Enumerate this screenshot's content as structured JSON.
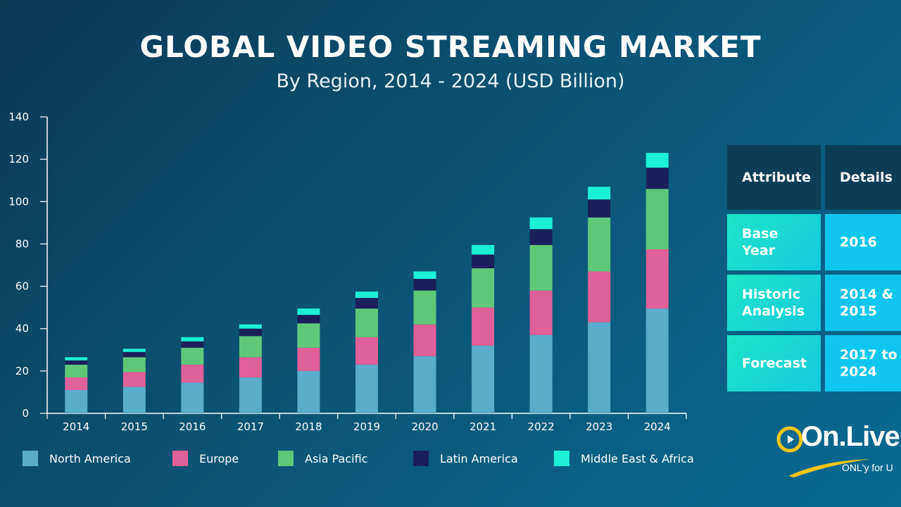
{
  "colors": {
    "background": "#0b5274",
    "north_america": "#5aaccb",
    "europe": "#e0609a",
    "asia_pacific": "#5ec878",
    "latin_america": "#1a1f5c",
    "middle_east_africa": "#1cf0d8",
    "table_header": "#0d3e57",
    "table_cell": "#10c6ee"
  },
  "chart_data": {
    "type": "bar",
    "stacked": true,
    "title": "GLOBAL VIDEO STREAMING MARKET",
    "subtitle": "By Region, 2014 - 2024 (USD Billion)",
    "xlabel": "",
    "ylabel": "",
    "ylim": [
      0,
      140
    ],
    "yticks": [
      0,
      20,
      40,
      60,
      80,
      100,
      120,
      140
    ],
    "grid": false,
    "legend_position": "bottom",
    "categories": [
      "2014",
      "2015",
      "2016",
      "2017",
      "2018",
      "2019",
      "2020",
      "2021",
      "2022",
      "2023",
      "2024"
    ],
    "series": [
      {
        "name": "North America",
        "color": "#5aaccb",
        "values": [
          11,
          12.5,
          14.5,
          17,
          20,
          23,
          27,
          32,
          37,
          43,
          49.5
        ]
      },
      {
        "name": "Europe",
        "color": "#e0609a",
        "values": [
          6,
          7,
          8.5,
          9.5,
          11,
          13,
          15,
          18,
          21,
          24,
          28
        ]
      },
      {
        "name": "Asia Pacific",
        "color": "#5ec878",
        "values": [
          6,
          7,
          8,
          10,
          11.5,
          13.5,
          16,
          18.5,
          21.5,
          25.5,
          28.5
        ]
      },
      {
        "name": "Latin America",
        "color": "#1a1f5c",
        "values": [
          2,
          2.5,
          3,
          3.5,
          4,
          5,
          5.5,
          6.5,
          7.5,
          8.5,
          10
        ]
      },
      {
        "name": "Middle East & Africa",
        "color": "#1cf0d8",
        "values": [
          1.5,
          1.5,
          2,
          2,
          3,
          3,
          3.5,
          4.5,
          5.5,
          6,
          7
        ]
      }
    ]
  },
  "table": {
    "header": {
      "attribute": "Attribute",
      "details": "Details"
    },
    "rows": [
      {
        "attribute": "Base Year",
        "details": "2016"
      },
      {
        "attribute": "Historic Analysis",
        "details": "2014 & 2015"
      },
      {
        "attribute": "Forecast",
        "details": "2017 to 2024"
      }
    ]
  },
  "logo": {
    "name": "On.Live",
    "tagline": "ONL'y for U"
  }
}
